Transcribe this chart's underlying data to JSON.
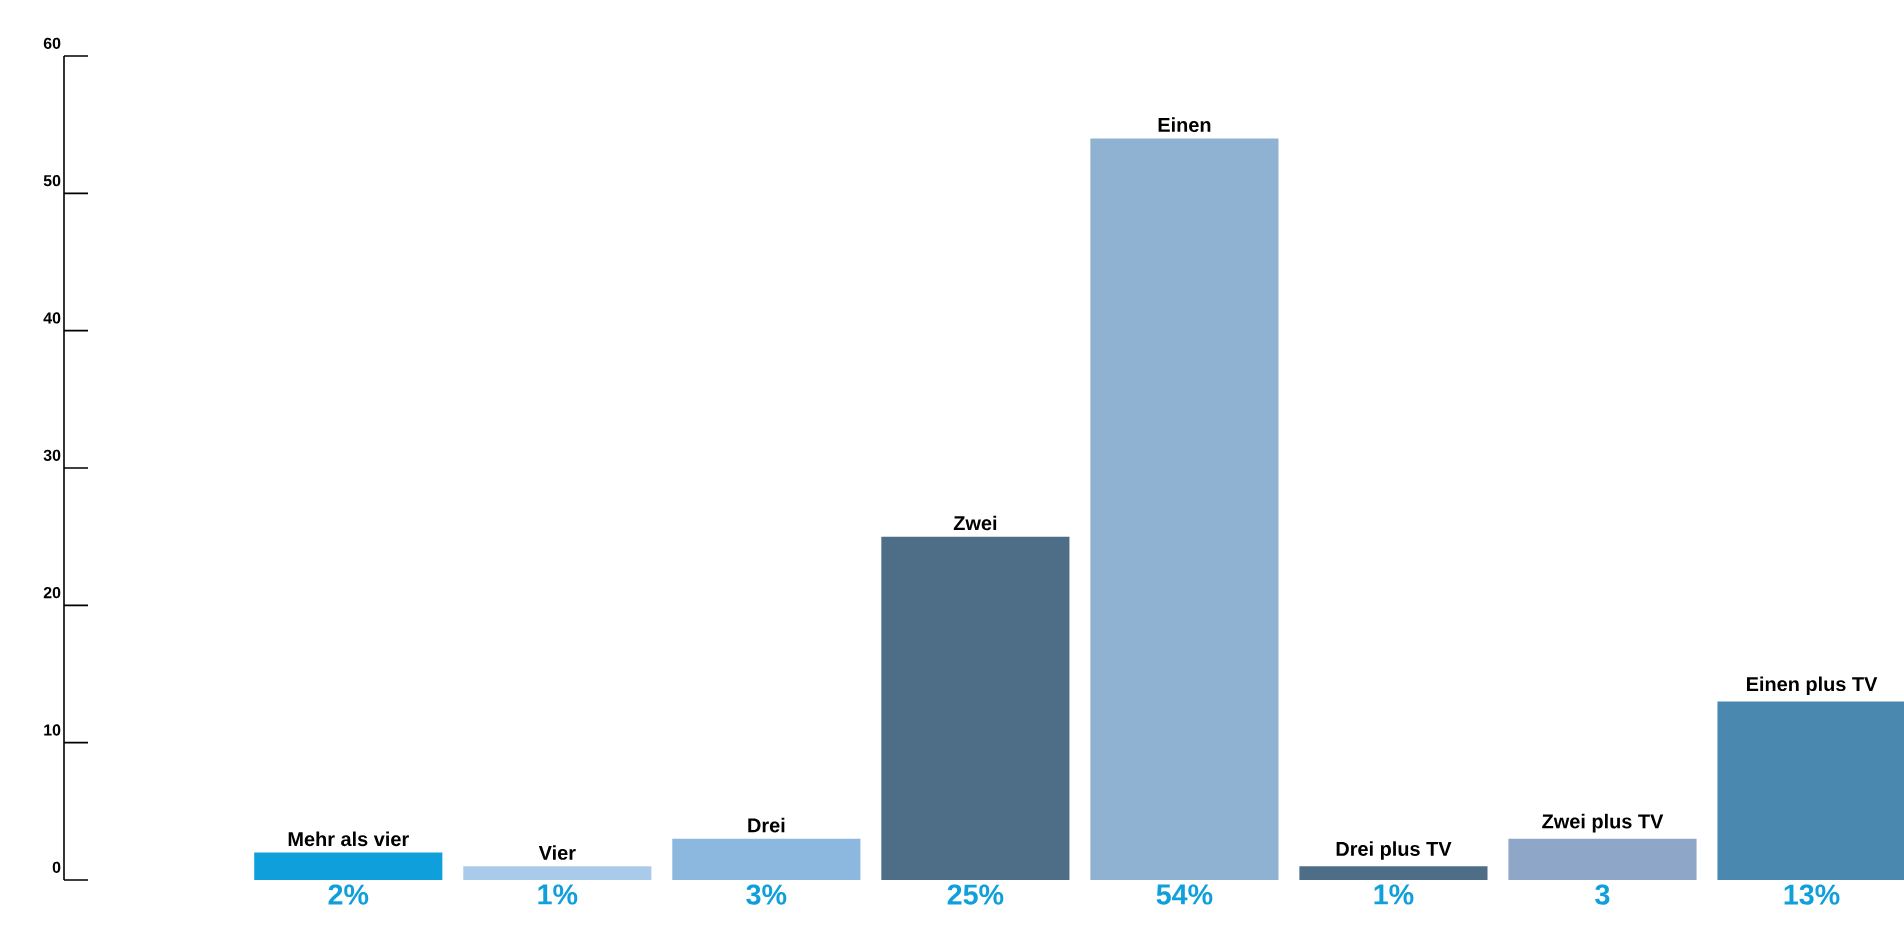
{
  "chart_data": {
    "type": "bar",
    "categories": [
      "Mehr als vier",
      "Vier",
      "Drei",
      "Zwei",
      "Einen",
      "Drei plus TV",
      "Zwei plus TV",
      "Einen plus TV"
    ],
    "values": [
      2,
      1,
      3,
      25,
      54,
      1,
      3,
      13
    ],
    "value_labels": [
      "2%",
      "1%",
      "3%",
      "25%",
      "54%",
      "1%",
      "3",
      "13%"
    ],
    "colors": [
      "#0fa0dc",
      "#a9cbe9",
      "#8cb7df",
      "#4e6e87",
      "#8fb2d3",
      "#4e6e87",
      "#8ea6c8",
      "#4a88b0"
    ],
    "ylim": [
      0,
      60
    ],
    "yticks": [
      0,
      10,
      20,
      30,
      40,
      50,
      60
    ]
  }
}
